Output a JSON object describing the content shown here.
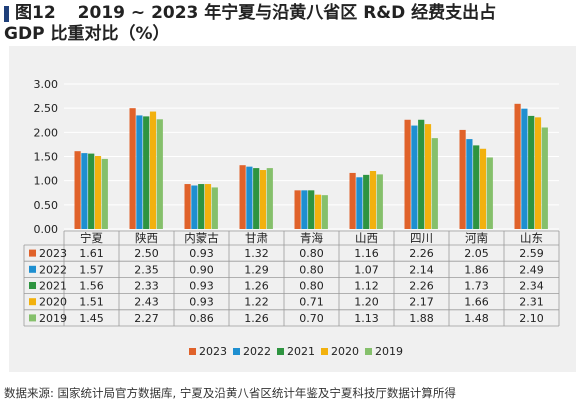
{
  "header": {
    "figure_label": "图12",
    "title_line1": "2019 ~ 2023 年宁夏与沿黄八省区 R&D 经费支出占",
    "title_line2": "GDP 比重对比（%）"
  },
  "source_note": "数据来源: 国家统计局官方数据库, 宁夏及沿黄八省区统计年鉴及宁夏科技厅数据计算所得",
  "chart_data": {
    "type": "bar",
    "title": "",
    "xlabel": "",
    "ylabel": "",
    "ylim": [
      0,
      3.0
    ],
    "yticks": [
      "0.00",
      "0.50",
      "1.00",
      "1.50",
      "2.00",
      "2.50",
      "3.00"
    ],
    "grid": true,
    "legend_position": "bottom",
    "data_table": true,
    "categories": [
      "宁夏",
      "陕西",
      "内蒙古",
      "甘肃",
      "青海",
      "山西",
      "四川",
      "河南",
      "山东"
    ],
    "series": [
      {
        "name": "2023",
        "color": "#e0622a",
        "values": [
          1.61,
          2.5,
          0.93,
          1.32,
          0.8,
          1.16,
          2.26,
          2.05,
          2.59
        ]
      },
      {
        "name": "2022",
        "color": "#1e8fd0",
        "values": [
          1.57,
          2.35,
          0.9,
          1.29,
          0.8,
          1.07,
          2.14,
          1.86,
          2.49
        ]
      },
      {
        "name": "2021",
        "color": "#2e9440",
        "values": [
          1.56,
          2.33,
          0.93,
          1.26,
          0.8,
          1.12,
          2.26,
          1.73,
          2.34
        ]
      },
      {
        "name": "2020",
        "color": "#f2b10e",
        "values": [
          1.51,
          2.43,
          0.93,
          1.22,
          0.71,
          1.2,
          2.17,
          1.66,
          2.31
        ]
      },
      {
        "name": "2019",
        "color": "#85c06b",
        "values": [
          1.45,
          2.27,
          0.86,
          1.26,
          0.7,
          1.13,
          1.88,
          1.48,
          2.1
        ]
      }
    ]
  }
}
